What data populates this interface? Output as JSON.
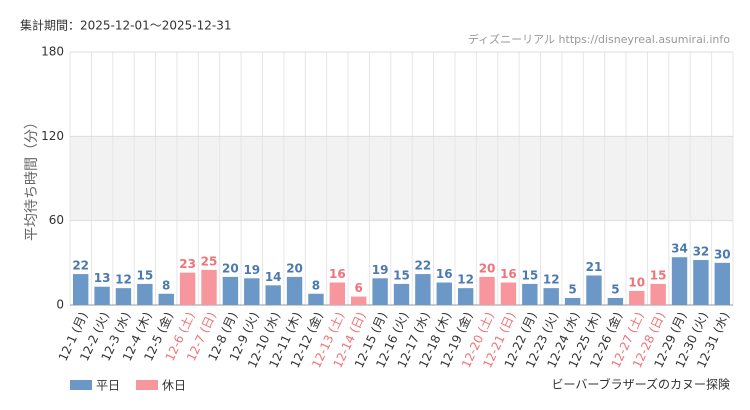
{
  "chart_data": {
    "type": "bar",
    "title": "集計期間：2025-12-01～2025-12-31",
    "source": "ディズニーリアル https://disneyreal.asumirai.info",
    "ylabel": "平均待ち時間（分）",
    "caption": "ビーバーブラザーズのカヌー探険",
    "categories": [
      "12-1 (月)",
      "12-2 (火)",
      "12-3 (水)",
      "12-4 (木)",
      "12-5 (金)",
      "12-6 (土)",
      "12-7 (日)",
      "12-8 (月)",
      "12-9 (火)",
      "12-10 (水)",
      "12-11 (木)",
      "12-12 (金)",
      "12-13 (土)",
      "12-14 (日)",
      "12-15 (月)",
      "12-16 (火)",
      "12-17 (水)",
      "12-18 (木)",
      "12-19 (金)",
      "12-20 (土)",
      "12-21 (日)",
      "12-22 (月)",
      "12-23 (火)",
      "12-24 (水)",
      "12-25 (木)",
      "12-26 (金)",
      "12-27 (土)",
      "12-28 (日)",
      "12-29 (月)",
      "12-30 (火)",
      "12-31 (水)"
    ],
    "series": [
      {
        "name": "平日",
        "color": "#6b98c7",
        "label_color": "#4a7aaf",
        "values": [
          22,
          13,
          12,
          15,
          8,
          null,
          null,
          20,
          19,
          14,
          20,
          8,
          null,
          null,
          19,
          15,
          22,
          16,
          12,
          null,
          null,
          15,
          12,
          5,
          21,
          5,
          null,
          null,
          34,
          32,
          30
        ]
      },
      {
        "name": "休日",
        "color": "#f7969c",
        "label_color": "#ef7378",
        "values": [
          null,
          null,
          null,
          null,
          null,
          23,
          25,
          null,
          null,
          null,
          null,
          null,
          16,
          6,
          null,
          null,
          null,
          null,
          null,
          20,
          16,
          null,
          null,
          null,
          null,
          null,
          10,
          15,
          null,
          null,
          null
        ]
      }
    ],
    "ylim": [
      0,
      180
    ],
    "yticks": [
      0,
      60,
      120,
      180
    ],
    "shaded_range": [
      60,
      120
    ],
    "grid": true
  }
}
